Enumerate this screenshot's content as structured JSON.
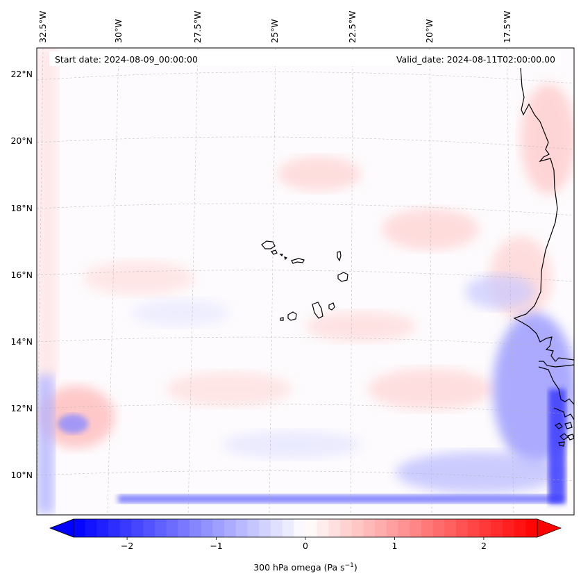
{
  "map": {
    "start_date": "Start date: 2024-08-09_00:00:00",
    "valid_date": "Valid_date: 2024-08-11T02:00:00.00",
    "lon_labels": [
      "32.5°W",
      "30°W",
      "27.5°W",
      "25°W",
      "22.5°W",
      "20°W",
      "17.5°W"
    ],
    "lat_labels": [
      "22°N",
      "20°N",
      "18°N",
      "16°N",
      "14°N",
      "12°N",
      "10°N"
    ],
    "islands": [
      "Santo Antão",
      "São Vicente",
      "Santa Luzia",
      "São Nicolau",
      "Sal",
      "Boa Vista",
      "Maio",
      "Santiago",
      "Fogo",
      "Brava"
    ],
    "coast": "West African coast (Senegal / Gambia / Guinea-Bissau)"
  },
  "colorbar": {
    "ticks": [
      "−2",
      "−1",
      "0",
      "1",
      "2"
    ],
    "tick_values": [
      -2,
      -1,
      0,
      1,
      2
    ],
    "vmin": -2.6,
    "vmax": 2.6,
    "label_main": "300 hPa omega (Pa s",
    "label_sup": "−1",
    "label_close": ")",
    "colors": {
      "negative": "#0000ff",
      "zero": "#ffffff",
      "positive": "#ff0000"
    }
  }
}
